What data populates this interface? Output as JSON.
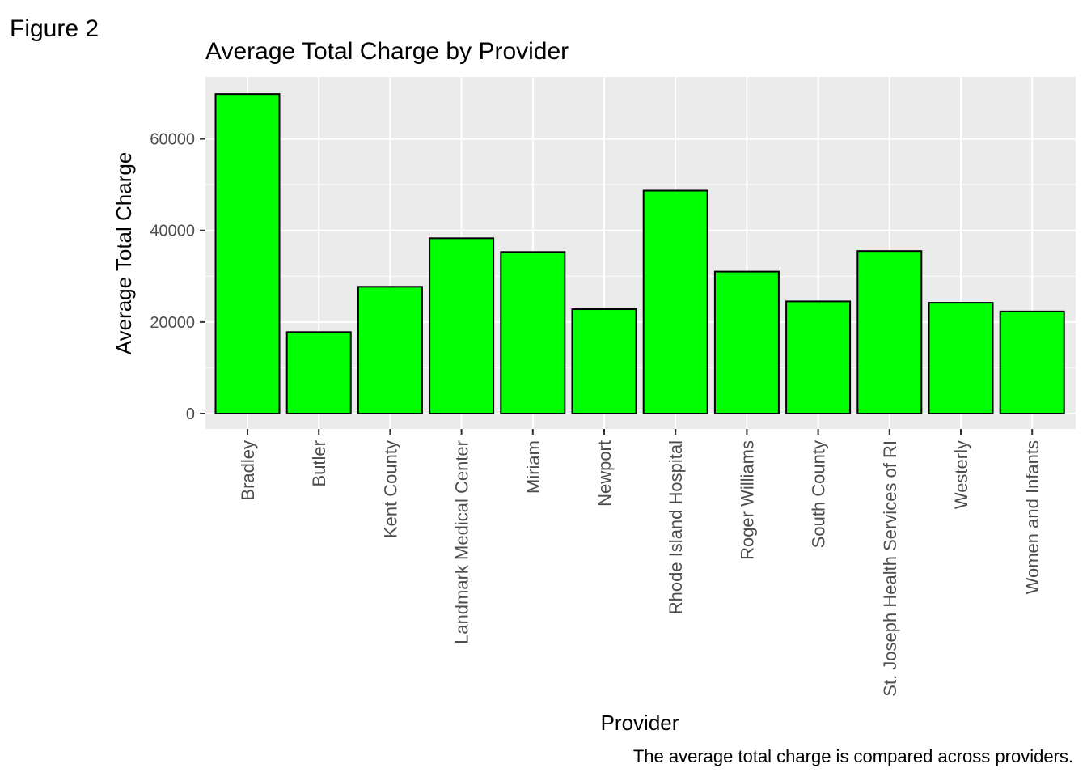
{
  "figure_label": "Figure 2",
  "caption": "The average total charge is compared across providers.",
  "colors": {
    "panel_background": "#ebebeb",
    "gridline": "#ffffff",
    "bar_fill": "#00ff00",
    "bar_outline": "#000000",
    "tick_text": "#4d4d4d",
    "title_text": "#000000"
  },
  "chart_data": {
    "type": "bar",
    "title": "Average Total Charge by Provider",
    "xlabel": "Provider",
    "ylabel": "Average Total Charge",
    "categories": [
      "Bradley",
      "Butler",
      "Kent County",
      "Landmark Medical Center",
      "Miriam",
      "Newport",
      "Rhode Island Hospital",
      "Roger Williams",
      "South County",
      "St. Joseph Health Services of RI",
      "Westerly",
      "Women and Infants"
    ],
    "values": [
      69800,
      17800,
      27700,
      38300,
      35300,
      22800,
      48700,
      31000,
      24500,
      35500,
      24200,
      22300
    ],
    "ylim": [
      0,
      73500
    ],
    "yticks": [
      0,
      20000,
      40000,
      60000
    ],
    "ytick_labels": [
      "0",
      "20000",
      "40000",
      "60000"
    ],
    "grid": true,
    "x_tick_rotation": "vertical",
    "legend": "none"
  }
}
